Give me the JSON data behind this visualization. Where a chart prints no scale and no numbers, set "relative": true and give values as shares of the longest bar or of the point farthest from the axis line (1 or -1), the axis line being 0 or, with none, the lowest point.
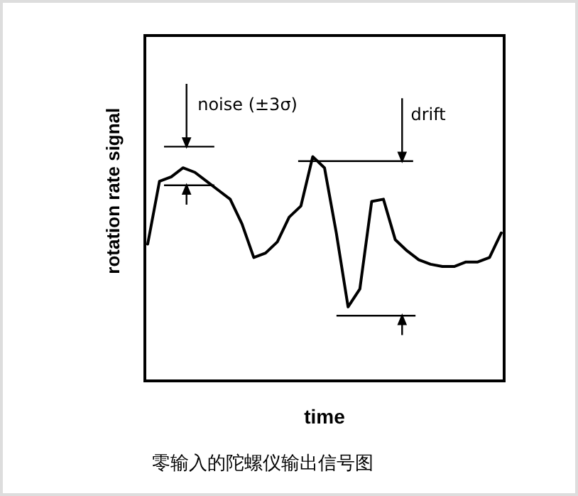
{
  "chart_data": {
    "type": "line",
    "relative": true,
    "xlabel": "time",
    "ylabel": "rotation rate signal",
    "annotations": [
      "noise (±3σ)",
      "drift",
      "零输入的陀螺仪输出信号图"
    ],
    "categories": [
      null,
      null,
      null,
      null,
      null,
      null,
      null,
      null,
      null,
      null,
      null,
      null,
      null,
      null,
      null,
      null,
      null,
      null,
      null,
      null,
      null,
      null,
      null,
      null,
      null,
      null,
      null,
      null,
      null,
      null,
      null
    ],
    "series": [
      {
        "color": "#000000",
        "values": [
          0.61,
          0.89,
          0.91,
          0.95,
          0.93,
          0.89,
          0.85,
          0.81,
          0.7,
          0.55,
          0.57,
          0.62,
          0.73,
          0.78,
          1.0,
          0.95,
          0.66,
          0.33,
          0.41,
          0.8,
          0.81,
          0.63,
          0.58,
          0.54,
          0.52,
          0.51,
          0.51,
          0.53,
          0.53,
          0.55,
          0.66
        ]
      }
    ]
  }
}
